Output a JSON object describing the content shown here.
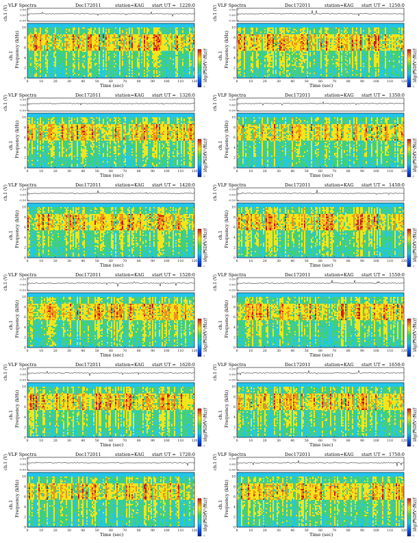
{
  "figure": {
    "title_prefix": "VLF Spectra",
    "date_label": "Dec172011",
    "station_label": "station=KAG",
    "start_prefix": "start UT =",
    "ch_label": "ch.1 (V)",
    "spec_label": "ch.1",
    "freq_label": "Frequency (kHz)",
    "time_label": "Time (sec)",
    "colorbar_label": "log(PSD(V²/Hz))"
  },
  "panels": [
    {
      "start_ut": "1220:0"
    },
    {
      "start_ut": "1250:0"
    },
    {
      "start_ut": "1320:0"
    },
    {
      "start_ut": "1350:0"
    },
    {
      "start_ut": "1420:0"
    },
    {
      "start_ut": "1450:0"
    },
    {
      "start_ut": "1520:0"
    },
    {
      "start_ut": "1550:0"
    },
    {
      "start_ut": "1620:0"
    },
    {
      "start_ut": "1650:0"
    },
    {
      "start_ut": "1720:0"
    },
    {
      "start_ut": "1750:0"
    }
  ],
  "chart_data": {
    "type": "heatmap",
    "description_axes": {
      "waveform_yticks": [
        "0.50",
        "0.00",
        "-0.50"
      ],
      "waveform_ylim": [
        -0.5,
        0.5
      ],
      "freq_yticks": [
        "0",
        "2",
        "4",
        "6",
        "8",
        "10"
      ],
      "freq_ylim": [
        0,
        10
      ],
      "time_xticks": [
        "0",
        "10",
        "20",
        "30",
        "40",
        "50",
        "60",
        "70",
        "80",
        "90",
        "100",
        "110",
        "120"
      ],
      "time_xlim": [
        0,
        120
      ],
      "colorbar_ticks": [
        "-7",
        "-6",
        "-5",
        "-4",
        "-3",
        "-2"
      ]
    },
    "colors": {
      "background": "#1ec8e6",
      "low": "#00208a",
      "mid": "#35d35a",
      "high": "#f2e51c",
      "peak": "#d01414"
    }
  }
}
